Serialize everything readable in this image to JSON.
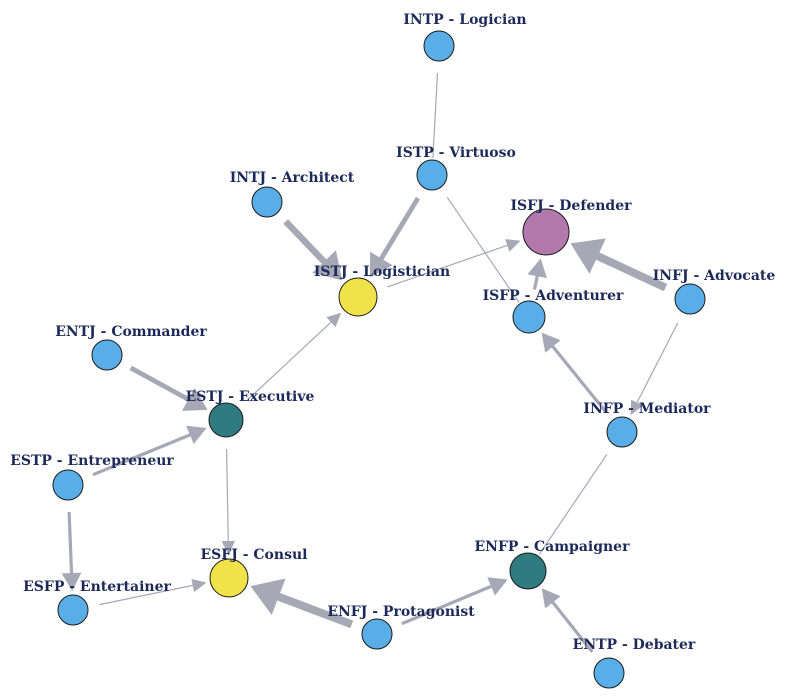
{
  "colors": {
    "background": "#ffffff",
    "edge": "#a7a7b6",
    "label": "#1c2a5a",
    "node_stroke": "#1a1a1a",
    "node_default": "#5aaee8",
    "node_yellow": "#f1e24a",
    "node_teal": "#2f7b7f",
    "node_purple": "#b378ac"
  },
  "nodes": [
    {
      "id": "intp",
      "label": "INTP - Logician",
      "color": "node_default"
    },
    {
      "id": "istp",
      "label": "ISTP - Virtuoso",
      "color": "node_default"
    },
    {
      "id": "intj",
      "label": "INTJ - Architect",
      "color": "node_default"
    },
    {
      "id": "isfj",
      "label": "ISFJ - Defender",
      "color": "node_purple"
    },
    {
      "id": "istj",
      "label": "ISTJ - Logistician",
      "color": "node_yellow"
    },
    {
      "id": "isfp",
      "label": "ISFP - Adventurer",
      "color": "node_default"
    },
    {
      "id": "infj",
      "label": "INFJ - Advocate",
      "color": "node_default"
    },
    {
      "id": "entj",
      "label": "ENTJ - Commander",
      "color": "node_default"
    },
    {
      "id": "estj",
      "label": "ESTJ - Executive",
      "color": "node_teal"
    },
    {
      "id": "infp",
      "label": "INFP - Mediator",
      "color": "node_default"
    },
    {
      "id": "estp",
      "label": "ESTP - Entrepreneur",
      "color": "node_default"
    },
    {
      "id": "esfj",
      "label": "ESFJ - Consul",
      "color": "node_yellow"
    },
    {
      "id": "enfp",
      "label": "ENFP - Campaigner",
      "color": "node_teal"
    },
    {
      "id": "esfp",
      "label": "ESFP - Entertainer",
      "color": "node_default"
    },
    {
      "id": "enfj",
      "label": "ENFJ - Protagonist",
      "color": "node_default"
    },
    {
      "id": "entp",
      "label": "ENTP - Debater",
      "color": "node_default"
    }
  ],
  "edges": [
    {
      "from": "intp",
      "to": "istp",
      "weight": 1,
      "arrow": false
    },
    {
      "from": "istp",
      "to": "istj",
      "weight": 3,
      "arrow": true
    },
    {
      "from": "istp",
      "to": "isfp",
      "weight": 1,
      "arrow": false
    },
    {
      "from": "intj",
      "to": "istj",
      "weight": 4,
      "arrow": true
    },
    {
      "from": "istj",
      "to": "isfj",
      "weight": 1,
      "arrow": true
    },
    {
      "from": "isfp",
      "to": "isfj",
      "weight": 2,
      "arrow": true
    },
    {
      "from": "infj",
      "to": "isfj",
      "weight": 5,
      "arrow": true
    },
    {
      "from": "infj",
      "to": "infp",
      "weight": 1,
      "arrow": true
    },
    {
      "from": "infp",
      "to": "isfp",
      "weight": 2,
      "arrow": true
    },
    {
      "from": "infp",
      "to": "enfp",
      "weight": 1,
      "arrow": false
    },
    {
      "from": "entj",
      "to": "estj",
      "weight": 3,
      "arrow": true
    },
    {
      "from": "estj",
      "to": "istj",
      "weight": 1,
      "arrow": true
    },
    {
      "from": "estj",
      "to": "esfj",
      "weight": 1,
      "arrow": true
    },
    {
      "from": "estp",
      "to": "estj",
      "weight": 2,
      "arrow": true
    },
    {
      "from": "estp",
      "to": "esfp",
      "weight": 2,
      "arrow": true
    },
    {
      "from": "esfp",
      "to": "esfj",
      "weight": 1,
      "arrow": true
    },
    {
      "from": "enfj",
      "to": "esfj",
      "weight": 5,
      "arrow": true
    },
    {
      "from": "enfj",
      "to": "enfp",
      "weight": 2,
      "arrow": true
    },
    {
      "from": "entp",
      "to": "enfp",
      "weight": 2,
      "arrow": true
    }
  ]
}
